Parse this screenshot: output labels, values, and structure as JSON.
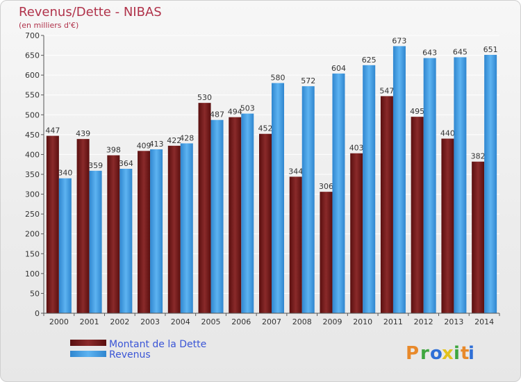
{
  "chart_data": {
    "type": "bar",
    "title": "Revenus/Dette - NIBAS",
    "subtitle": "(en milliers d'€)",
    "categories": [
      "2000",
      "2001",
      "2002",
      "2003",
      "2004",
      "2005",
      "2006",
      "2007",
      "2008",
      "2009",
      "2010",
      "2011",
      "2012",
      "2013",
      "2014"
    ],
    "series": [
      {
        "name": "Montant de la Dette",
        "color": "#7a1b1b",
        "values": [
          447,
          439,
          398,
          409,
          422,
          530,
          494,
          452,
          344,
          306,
          403,
          547,
          495,
          440,
          382
        ]
      },
      {
        "name": "Revenus",
        "color": "#4aa3e8",
        "values": [
          340,
          359,
          364,
          413,
          428,
          487,
          503,
          580,
          572,
          604,
          625,
          673,
          643,
          645,
          651
        ]
      }
    ],
    "ylim": [
      0,
      700
    ],
    "yticks": [
      0,
      50,
      100,
      150,
      200,
      250,
      300,
      350,
      400,
      450,
      500,
      550,
      600,
      650,
      700
    ],
    "grid": true,
    "legend_position": "bottom-left"
  },
  "brand": {
    "letters": [
      "P",
      "r",
      "o",
      "x",
      "i",
      "t",
      "i"
    ],
    "colors": [
      "#e8892a",
      "#3fa63f",
      "#2f6fd6",
      "#e2c21c",
      "#3fa63f",
      "#e8892a",
      "#2f6fd6"
    ]
  }
}
